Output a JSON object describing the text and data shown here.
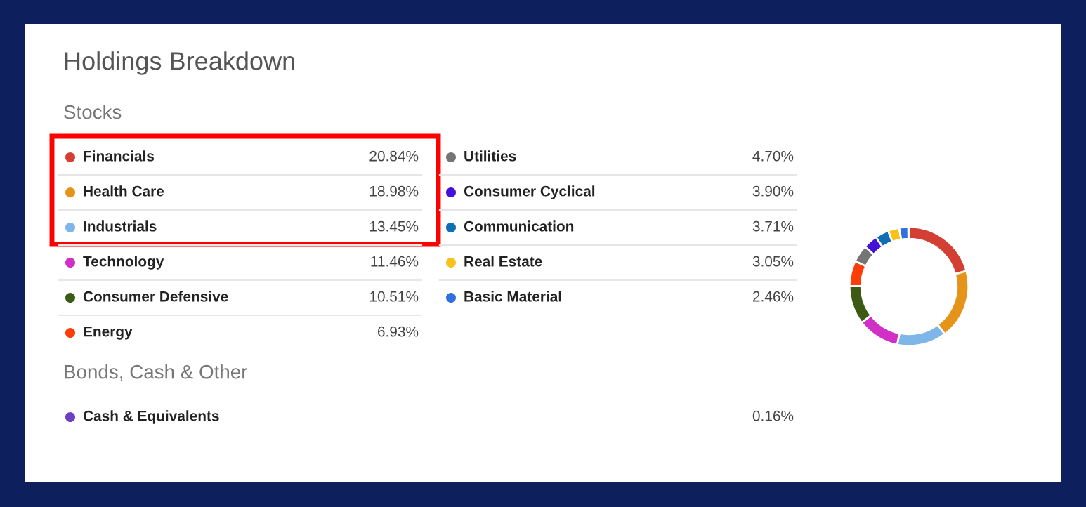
{
  "chart_data": {
    "type": "donut",
    "title": "Holdings Breakdown",
    "categories": [
      "Financials",
      "Health Care",
      "Industrials",
      "Technology",
      "Consumer Defensive",
      "Energy",
      "Utilities",
      "Consumer Cyclical",
      "Communication",
      "Real Estate",
      "Basic Material",
      "Cash & Equivalents"
    ],
    "values": [
      20.84,
      18.98,
      13.45,
      11.46,
      10.51,
      6.93,
      4.7,
      3.9,
      3.71,
      3.05,
      2.46,
      0.16
    ],
    "value_labels": [
      "20.84%",
      "18.98%",
      "13.45%",
      "11.46%",
      "10.51%",
      "6.93%",
      "4.70%",
      "3.90%",
      "3.71%",
      "3.05%",
      "2.46%",
      "0.16%"
    ],
    "colors": [
      "#d33f32",
      "#e69419",
      "#7fb6ea",
      "#d12fc6",
      "#3d5a14",
      "#fb3d07",
      "#757575",
      "#4411d8",
      "#0e6fb5",
      "#f9c21b",
      "#2f6fe0",
      "#6f3fc3"
    ],
    "legend": "left",
    "annotations": [
      "Stocks",
      "Bonds, Cash & Other"
    ]
  }
}
